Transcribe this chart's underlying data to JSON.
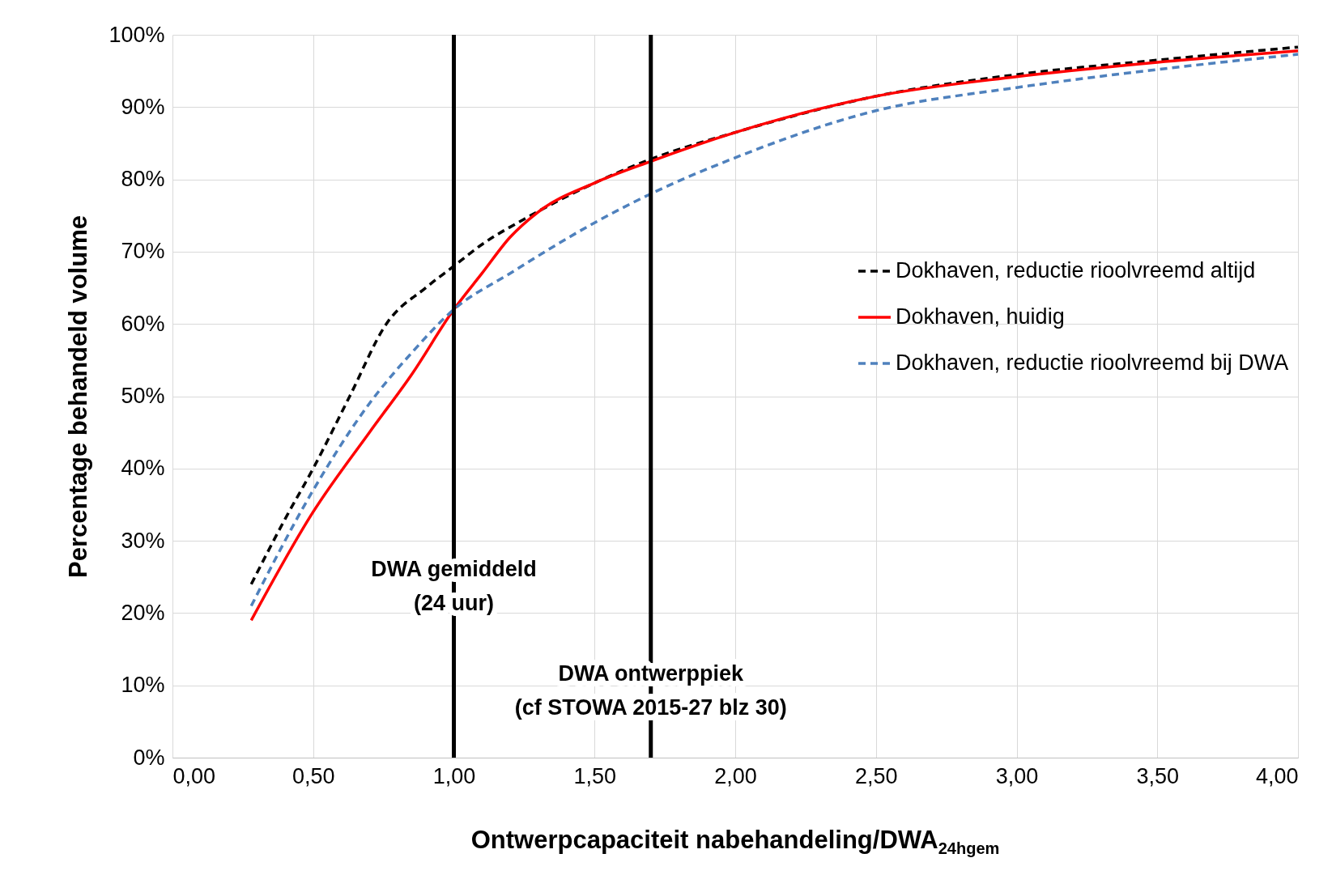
{
  "chart_data": {
    "type": "line",
    "xlabel": "Ontwerpcapaciteit nabehandeling/DWA$_{24hgem}$",
    "ylabel": "Percentage behandeld volume",
    "xlim": [
      0,
      4
    ],
    "xticks": [
      {
        "value": 0,
        "label": "0,00"
      },
      {
        "value": 0.5,
        "label": "0,50"
      },
      {
        "value": 1,
        "label": "1,00"
      },
      {
        "value": 1.5,
        "label": "1,50"
      },
      {
        "value": 2,
        "label": "2,00"
      },
      {
        "value": 2.5,
        "label": "2,50"
      },
      {
        "value": 3,
        "label": "3,00"
      },
      {
        "value": 3.5,
        "label": "3,50"
      },
      {
        "value": 4,
        "label": "4,00"
      }
    ],
    "ylim": [
      0,
      100
    ],
    "yticks": [
      {
        "value": 0,
        "label": "0%"
      },
      {
        "value": 10,
        "label": "10%"
      },
      {
        "value": 20,
        "label": "20%"
      },
      {
        "value": 30,
        "label": "30%"
      },
      {
        "value": 40,
        "label": "40%"
      },
      {
        "value": 50,
        "label": "50%"
      },
      {
        "value": 60,
        "label": "60%"
      },
      {
        "value": 70,
        "label": "70%"
      },
      {
        "value": 80,
        "label": "80%"
      },
      {
        "value": 90,
        "label": "90%"
      },
      {
        "value": 100,
        "label": "100%"
      }
    ],
    "grid": true,
    "legend": "right",
    "marker": "none",
    "series": [
      {
        "name": "Dokhaven, reductie rioolvreemd altijd",
        "color": "#000000",
        "line_style": "dashed",
        "x": [
          0.28,
          0.4,
          0.5,
          0.63,
          0.76,
          0.9,
          1.0,
          1.1,
          1.25,
          1.5,
          1.7,
          2.0,
          2.5,
          3.0,
          3.5,
          4.0
        ],
        "values": [
          24,
          33,
          40,
          50,
          60,
          65,
          68,
          71,
          74.5,
          79.5,
          82.8,
          86.5,
          91.5,
          94.5,
          96.5,
          98.3
        ]
      },
      {
        "name": "Dokhaven, huidig",
        "color": "#ff0000",
        "line_style": "solid",
        "x": [
          0.28,
          0.5,
          0.7,
          0.85,
          1.0,
          1.1,
          1.2,
          1.3,
          1.5,
          1.7,
          2.0,
          2.5,
          3.0,
          3.5,
          4.0
        ],
        "values": [
          19,
          34,
          45,
          53,
          62,
          67,
          72,
          75.5,
          79.5,
          82.5,
          86.5,
          91.5,
          94.2,
          96.2,
          97.8
        ]
      },
      {
        "name": "Dokhaven, reductie rioolvreemd bij DWA",
        "color": "#4f81bd",
        "line_style": "dashed",
        "x": [
          0.28,
          0.5,
          0.7,
          0.85,
          1.0,
          1.2,
          1.5,
          1.7,
          2.0,
          2.5,
          3.0,
          3.5,
          4.0
        ],
        "values": [
          21,
          37,
          49,
          56,
          62,
          67,
          74,
          78,
          83,
          89.5,
          92.7,
          95.2,
          97.3
        ]
      }
    ],
    "ref_lines": [
      {
        "axis": "x",
        "value": 1.0,
        "label": "DWA gemiddeld\n(24 uur)",
        "color": "#000000"
      },
      {
        "axis": "x",
        "value": 1.7,
        "label": "DWA ontwerppiek\n(cf STOWA 2015-27 blz 30)",
        "color": "#000000"
      }
    ]
  }
}
